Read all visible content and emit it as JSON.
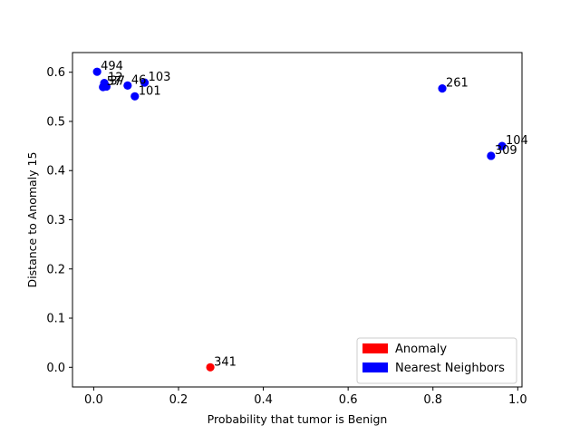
{
  "chart_data": {
    "type": "scatter",
    "title": "",
    "xlabel": "Probability that tumor is Benign",
    "ylabel": "Distance to Anomaly 15",
    "xlim": [
      -0.05,
      1.01
    ],
    "ylim": [
      -0.04,
      0.64
    ],
    "xticks": [
      0.0,
      0.2,
      0.4,
      0.6,
      0.8,
      1.0
    ],
    "xtick_labels": [
      "0.0",
      "0.2",
      "0.4",
      "0.6",
      "0.8",
      "1.0"
    ],
    "yticks": [
      0.0,
      0.1,
      0.2,
      0.3,
      0.4,
      0.5,
      0.6
    ],
    "ytick_labels": [
      "0.0",
      "0.1",
      "0.2",
      "0.3",
      "0.4",
      "0.5",
      "0.6"
    ],
    "grid": false,
    "legend_position": "bottom-right",
    "series": [
      {
        "name": "Anomaly",
        "color": "#ff0000",
        "points": [
          {
            "x": 0.275,
            "y": 0.0,
            "label": "341"
          }
        ]
      },
      {
        "name": "Nearest Neighbors",
        "color": "#0000ff",
        "points": [
          {
            "x": 0.008,
            "y": 0.601,
            "label": "494"
          },
          {
            "x": 0.025,
            "y": 0.578,
            "label": "12"
          },
          {
            "x": 0.022,
            "y": 0.57,
            "label": "57"
          },
          {
            "x": 0.03,
            "y": 0.571,
            "label": "37"
          },
          {
            "x": 0.08,
            "y": 0.573,
            "label": "46"
          },
          {
            "x": 0.12,
            "y": 0.579,
            "label": "103"
          },
          {
            "x": 0.097,
            "y": 0.551,
            "label": "101"
          },
          {
            "x": 0.822,
            "y": 0.567,
            "label": "261"
          },
          {
            "x": 0.963,
            "y": 0.45,
            "label": "104"
          },
          {
            "x": 0.937,
            "y": 0.43,
            "label": "309"
          }
        ]
      }
    ]
  }
}
